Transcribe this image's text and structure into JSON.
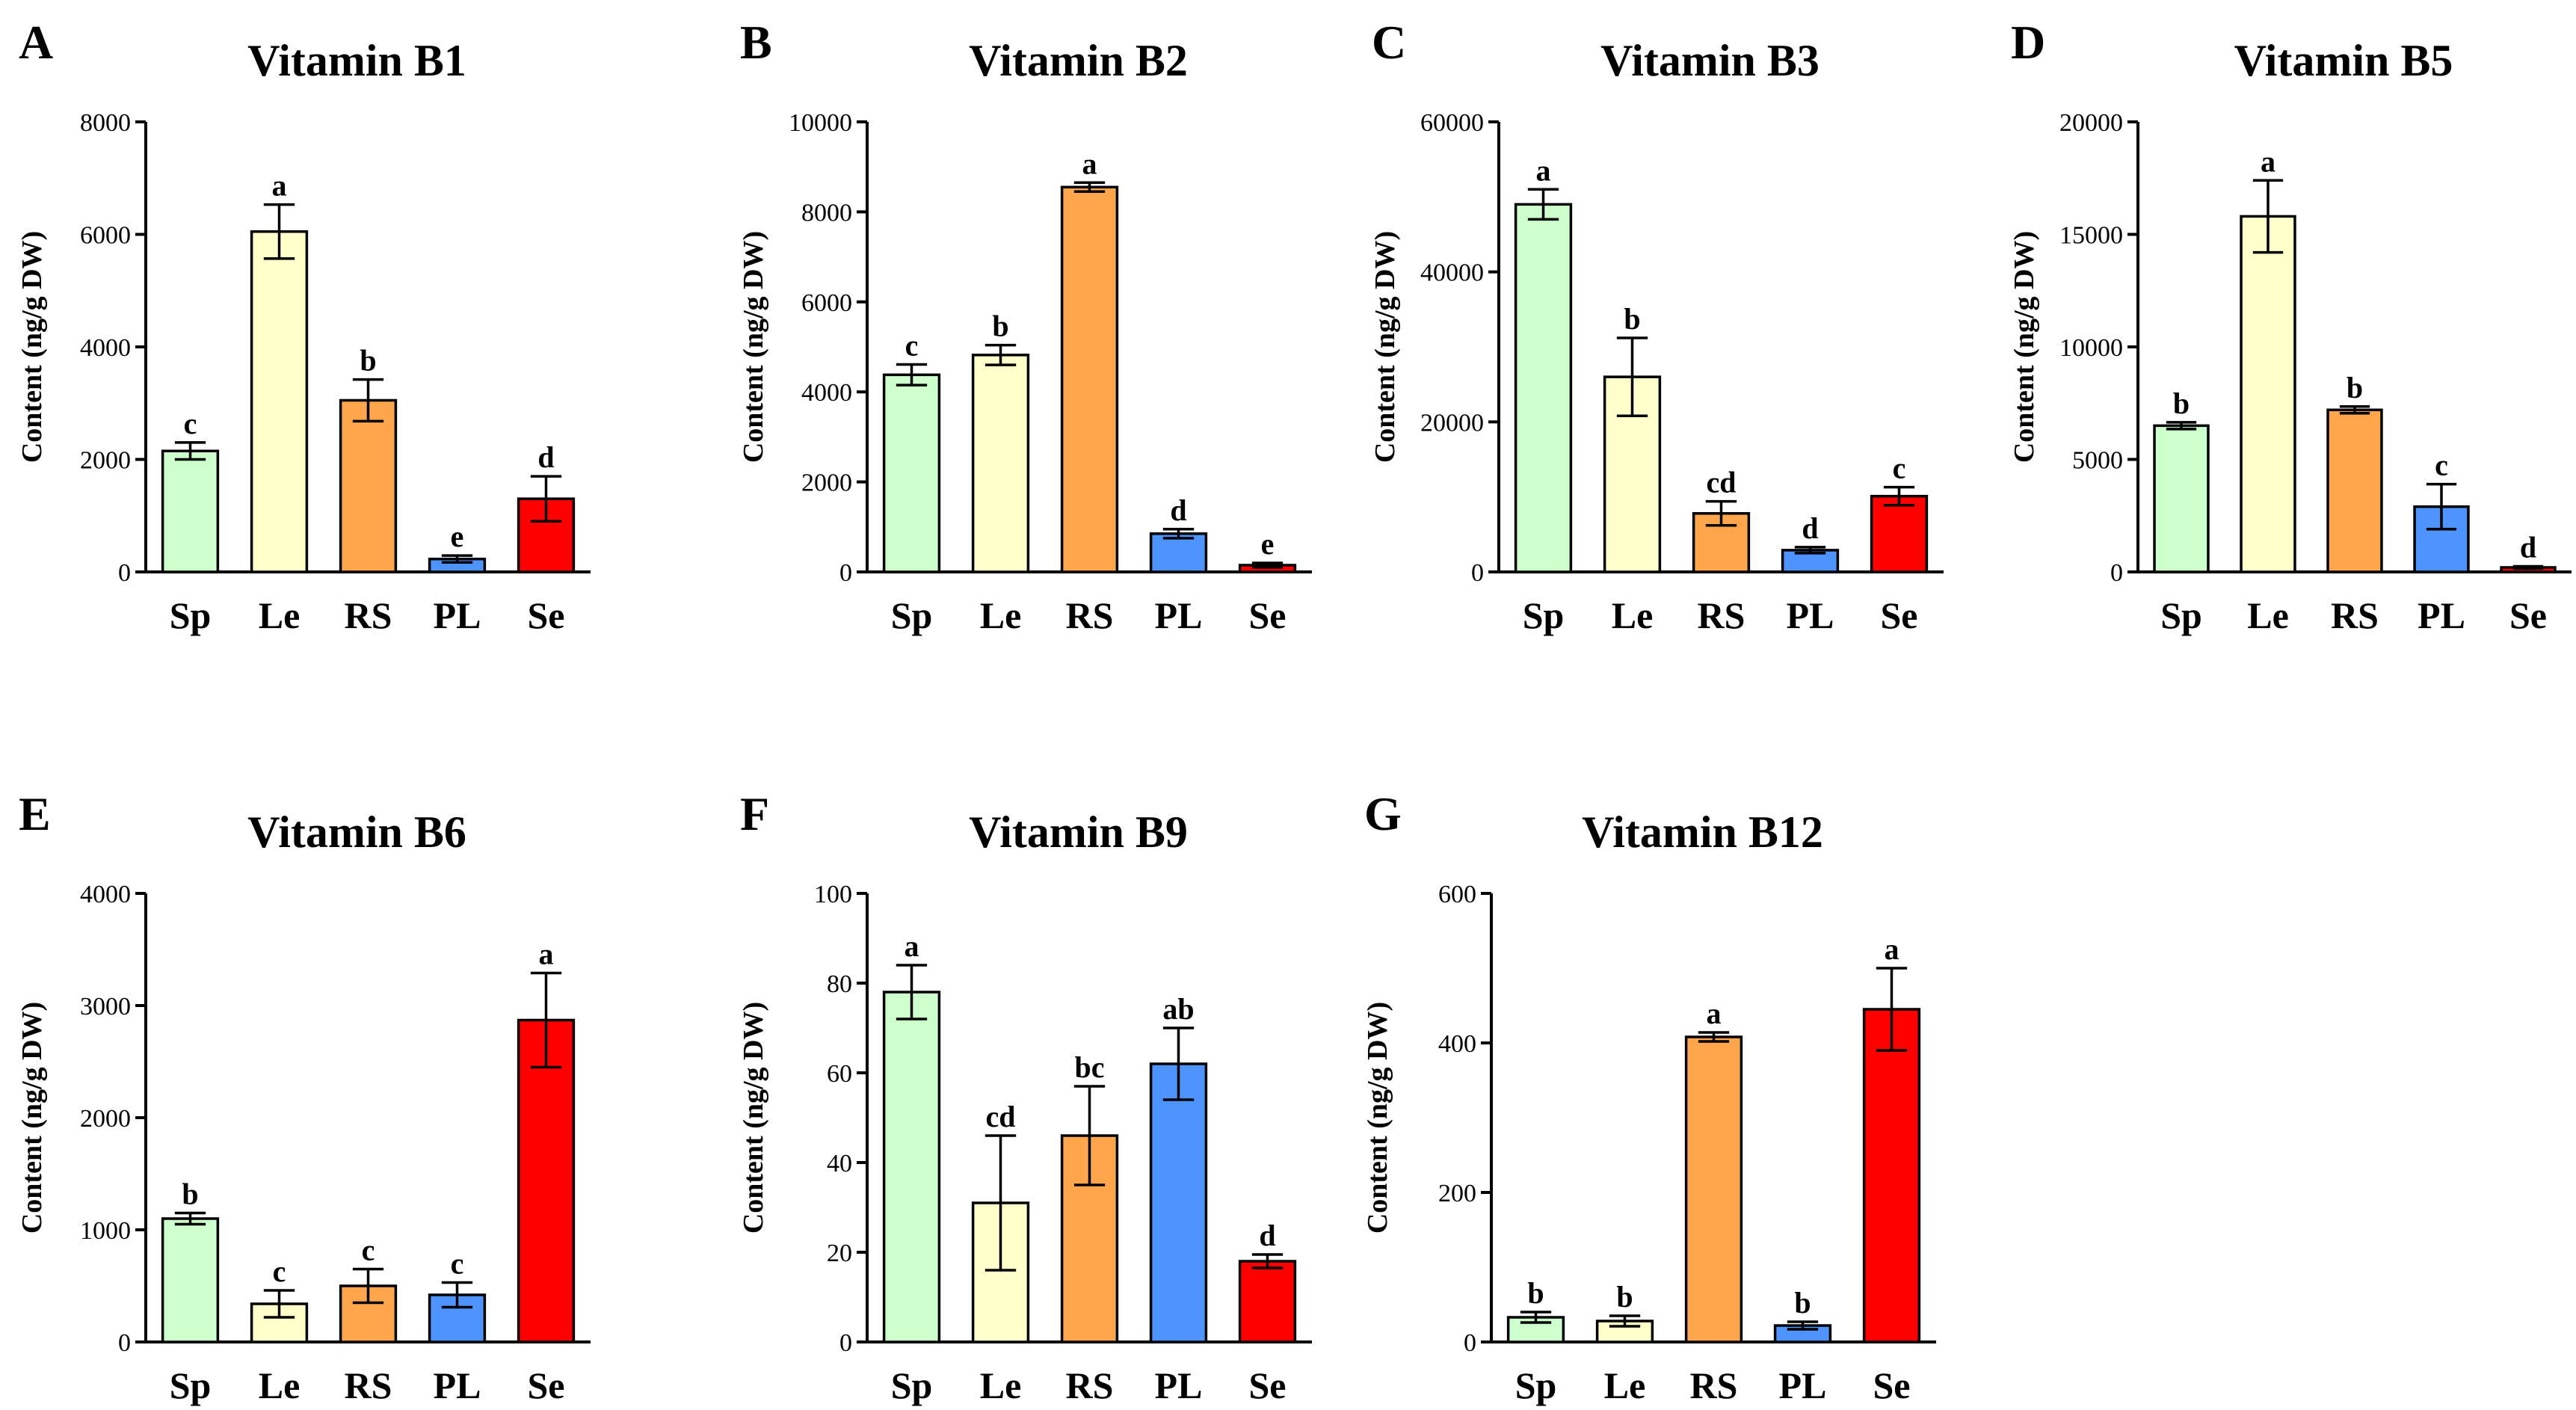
{
  "figure": {
    "panels": [
      "A",
      "B",
      "C",
      "D",
      "E",
      "F",
      "G"
    ],
    "bar_colors": [
      "#ccffcc",
      "#ffffcc",
      "#ffa64d",
      "#4d94ff",
      "#ff0000"
    ]
  },
  "chart_data": [
    {
      "type": "bar",
      "panel": "A",
      "title": "Vitamin B1",
      "ylabel": "Content (ng/g DW)",
      "xlabel": "",
      "categories": [
        "Sp",
        "Le",
        "RS",
        "PL",
        "Se"
      ],
      "values": [
        2150,
        6050,
        3050,
        230,
        1300
      ],
      "errors": [
        150,
        480,
        370,
        60,
        400
      ],
      "labels": [
        "c",
        "a",
        "b",
        "e",
        "d"
      ],
      "ylim": [
        0,
        8000
      ],
      "yticks": [
        0,
        2000,
        4000,
        6000,
        8000
      ],
      "ytick_labels": [
        "0",
        "2000",
        "4000",
        "6000",
        "8000"
      ]
    },
    {
      "type": "bar",
      "panel": "B",
      "title": "Vitamin B2",
      "ylabel": "Content (ng/g DW)",
      "xlabel": "",
      "categories": [
        "Sp",
        "Le",
        "RS",
        "PL",
        "Se"
      ],
      "values": [
        4380,
        4820,
        8550,
        850,
        150
      ],
      "errors": [
        230,
        220,
        100,
        100,
        50
      ],
      "labels": [
        "c",
        "b",
        "a",
        "d",
        "e"
      ],
      "ylim": [
        0,
        10000
      ],
      "yticks": [
        0,
        2000,
        4000,
        6000,
        8000,
        10000
      ],
      "ytick_labels": [
        "0",
        "2000",
        "4000",
        "6000",
        "8000",
        "10000"
      ]
    },
    {
      "type": "bar",
      "panel": "C",
      "title": "Vitamin B3",
      "ylabel": "Content (ng/g DW)",
      "xlabel": "",
      "categories": [
        "Sp",
        "Le",
        "RS",
        "PL",
        "Se"
      ],
      "values": [
        49000,
        26000,
        7800,
        2900,
        10100
      ],
      "errors": [
        2000,
        5200,
        1600,
        400,
        1200
      ],
      "labels": [
        "a",
        "b",
        "cd",
        "d",
        "c"
      ],
      "ylim": [
        0,
        60000
      ],
      "yticks": [
        0,
        20000,
        40000,
        60000
      ],
      "ytick_labels": [
        "0",
        "20000",
        "40000",
        "60000"
      ]
    },
    {
      "type": "bar",
      "panel": "D",
      "title": "Vitamin B5",
      "ylabel": "Content (ng/g DW)",
      "xlabel": "",
      "categories": [
        "Sp",
        "Le",
        "RS",
        "PL",
        "Se"
      ],
      "values": [
        6500,
        15800,
        7200,
        2900,
        200
      ],
      "errors": [
        150,
        1600,
        150,
        1000,
        50
      ],
      "labels": [
        "b",
        "a",
        "b",
        "c",
        "d"
      ],
      "ylim": [
        0,
        20000
      ],
      "yticks": [
        0,
        5000,
        10000,
        15000,
        20000
      ],
      "ytick_labels": [
        "0",
        "5000",
        "10000",
        "15000",
        "20000"
      ]
    },
    {
      "type": "bar",
      "panel": "E",
      "title": "Vitamin B6",
      "ylabel": "Content (ng/g DW)",
      "xlabel": "",
      "categories": [
        "Sp",
        "Le",
        "RS",
        "PL",
        "Se"
      ],
      "values": [
        1100,
        340,
        500,
        420,
        2870
      ],
      "errors": [
        50,
        120,
        150,
        110,
        420
      ],
      "labels": [
        "b",
        "c",
        "c",
        "c",
        "a"
      ],
      "ylim": [
        0,
        4000
      ],
      "yticks": [
        0,
        1000,
        2000,
        3000,
        4000
      ],
      "ytick_labels": [
        "0",
        "1000",
        "2000",
        "3000",
        "4000"
      ]
    },
    {
      "type": "bar",
      "panel": "F",
      "title": "Vitamin B9",
      "ylabel": "Content (ng/g DW)",
      "xlabel": "",
      "categories": [
        "Sp",
        "Le",
        "RS",
        "PL",
        "Se"
      ],
      "values": [
        78,
        31,
        46,
        62,
        18
      ],
      "errors": [
        6,
        15,
        11,
        8,
        1.5
      ],
      "labels": [
        "a",
        "cd",
        "bc",
        "ab",
        "d"
      ],
      "ylim": [
        0,
        100
      ],
      "yticks": [
        0,
        20,
        40,
        60,
        80,
        100
      ],
      "ytick_labels": [
        "0",
        "20",
        "40",
        "60",
        "80",
        "100"
      ]
    },
    {
      "type": "bar",
      "panel": "G",
      "title": "Vitamin B12",
      "ylabel": "Content (ng/g DW)",
      "xlabel": "",
      "categories": [
        "Sp",
        "Le",
        "RS",
        "PL",
        "Se"
      ],
      "values": [
        33,
        28,
        408,
        22,
        445
      ],
      "errors": [
        7,
        7,
        6,
        5,
        55
      ],
      "labels": [
        "b",
        "b",
        "a",
        "b",
        "a"
      ],
      "ylim": [
        0,
        600
      ],
      "yticks": [
        0,
        200,
        400,
        600
      ],
      "ytick_labels": [
        "0",
        "200",
        "400",
        "600"
      ]
    }
  ]
}
